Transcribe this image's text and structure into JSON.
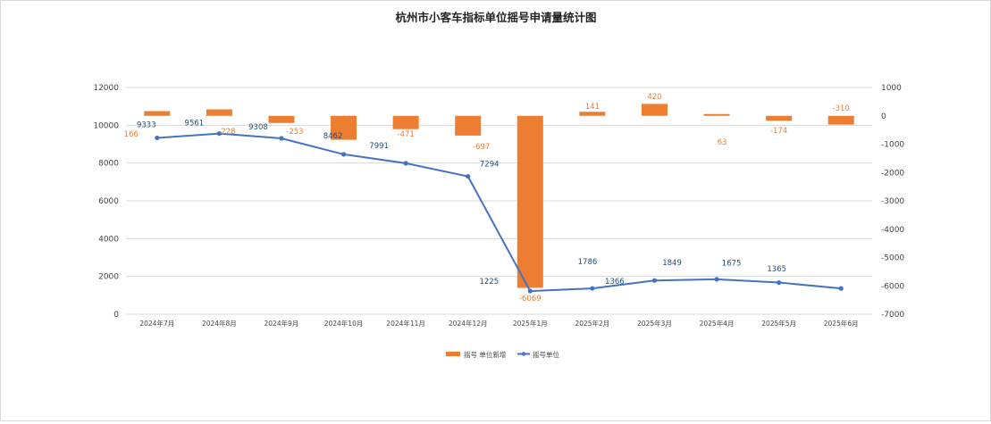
{
  "chart_data": {
    "type": "bar+line",
    "title": "杭州市小客车指标单位摇号申请量统计图",
    "categories": [
      "2024年7月",
      "2024年8月",
      "2024年9月",
      "2024年10月",
      "2024年11月",
      "2024年12月",
      "2025年1月",
      "2025年2月",
      "2025年3月",
      "2025年4月",
      "2025年5月",
      "2025年6月"
    ],
    "left_axis": {
      "ylim": [
        0,
        12000
      ],
      "ticks": [
        "0",
        "2000",
        "4000",
        "6000",
        "8000",
        "10000",
        "12000"
      ]
    },
    "right_axis": {
      "ylim": [
        -7000,
        1000
      ],
      "ticks": [
        "1000",
        "0",
        "-1000",
        "-2000",
        "-3000",
        "-4000",
        "-5000",
        "-6000",
        "-7000"
      ]
    },
    "grid": true,
    "legend_position": "bottom",
    "series": [
      {
        "name": "摇号 单位新增",
        "type": "bar",
        "axis": "right",
        "color": "#ed7d31",
        "values": [
          166,
          228,
          -253,
          -846,
          -471,
          -697,
          -6069,
          141,
          420,
          63,
          -174,
          -310
        ],
        "labels": [
          "166",
          "228",
          "-253",
          "-846",
          "-471",
          "-697",
          "-6069",
          "141",
          "420",
          "63",
          "-174",
          "-310"
        ]
      },
      {
        "name": "摇号单位",
        "type": "line",
        "axis": "left",
        "color": "#4472c4",
        "values": [
          9333,
          9561,
          9308,
          8462,
          7991,
          7294,
          1225,
          1366,
          1786,
          1849,
          1675,
          1365
        ],
        "labels": [
          "9333",
          "9561",
          "9308",
          "8462",
          "7991",
          "7294",
          "1225",
          "1366",
          "1786",
          "1849",
          "1675",
          "1365"
        ]
      }
    ]
  }
}
